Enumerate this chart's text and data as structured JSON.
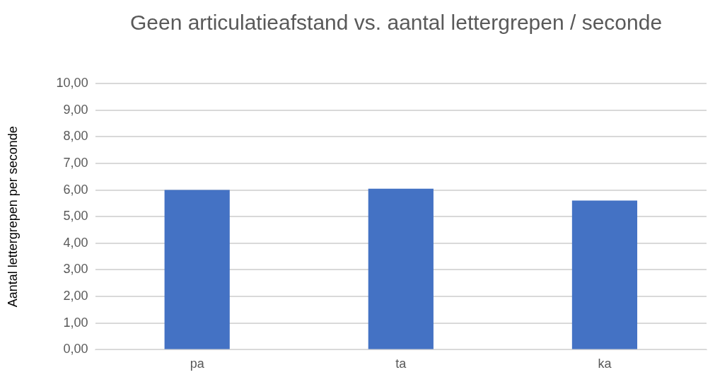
{
  "chart_data": {
    "type": "bar",
    "title": "Geen articulatieafstand vs. aantal lettergrepen / seconde",
    "ylabel": "Aantal lettergrepen per seconde",
    "categories": [
      "pa",
      "ta",
      "ka"
    ],
    "values": [
      6.0,
      6.05,
      5.6
    ],
    "color": "#4472c4",
    "ylim": [
      0,
      10
    ],
    "yticks": [
      {
        "value": 0,
        "label": "0,00"
      },
      {
        "value": 1,
        "label": "1,00"
      },
      {
        "value": 2,
        "label": "2,00"
      },
      {
        "value": 3,
        "label": "3,00"
      },
      {
        "value": 4,
        "label": "4,00"
      },
      {
        "value": 5,
        "label": "5,00"
      },
      {
        "value": 6,
        "label": "6,00"
      },
      {
        "value": 7,
        "label": "7,00"
      },
      {
        "value": 8,
        "label": "8,00"
      },
      {
        "value": 9,
        "label": "9,00"
      },
      {
        "value": 10,
        "label": "10,00"
      }
    ],
    "grid": "y"
  }
}
